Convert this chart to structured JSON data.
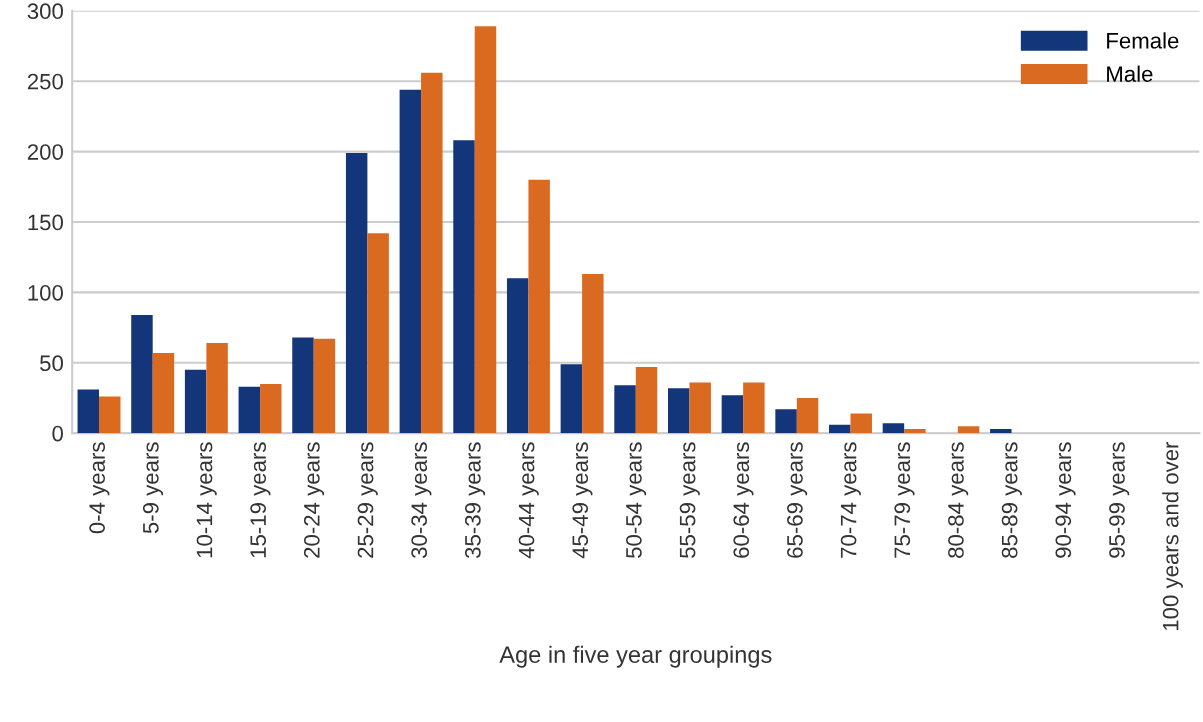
{
  "chart_data": {
    "type": "bar",
    "xlabel": "Age in five year groupings",
    "categories": [
      "0-4 years",
      "5-9 years",
      "10-14 years",
      "15-19 years",
      "20-24 years",
      "25-29 years",
      "30-34 years",
      "35-39 years",
      "40-44 years",
      "45-49 years",
      "50-54 years",
      "55-59 years",
      "60-64 years",
      "65-69 years",
      "70-74 years",
      "75-79 years",
      "80-84 years",
      "85-89 years",
      "90-94 years",
      "95-99 years",
      "100 years and over"
    ],
    "series": [
      {
        "name": "Female",
        "color": "#13357a",
        "values": [
          31,
          84,
          45,
          33,
          68,
          199,
          244,
          208,
          110,
          49,
          34,
          32,
          27,
          17,
          6,
          7,
          0,
          3,
          0,
          0,
          0
        ]
      },
      {
        "name": "Male",
        "color": "#db6a21",
        "values": [
          26,
          57,
          64,
          35,
          67,
          142,
          256,
          289,
          180,
          113,
          47,
          36,
          36,
          25,
          14,
          3,
          5,
          0,
          0,
          0,
          0
        ]
      }
    ],
    "ylim": [
      0,
      300
    ],
    "yticks": [
      0,
      50,
      100,
      150,
      200,
      250,
      300
    ],
    "grid": "y",
    "legend": "top right"
  }
}
